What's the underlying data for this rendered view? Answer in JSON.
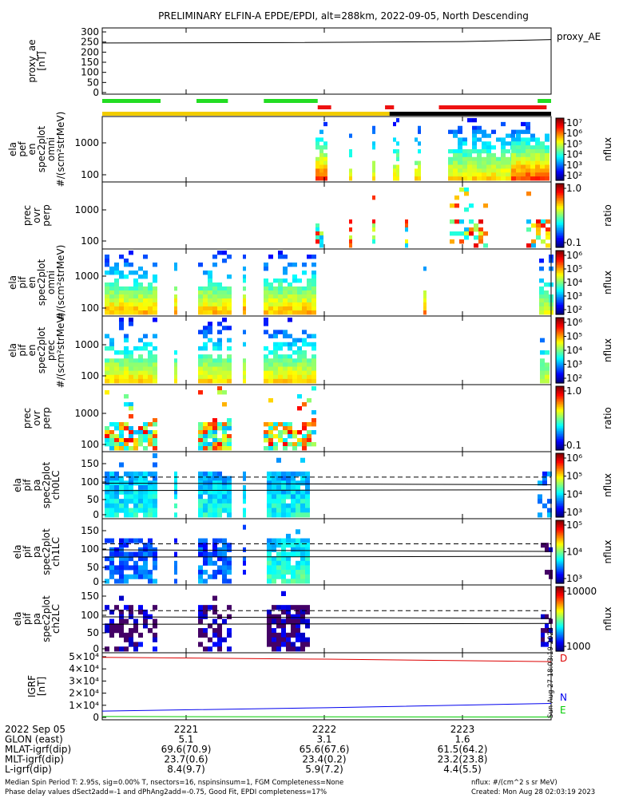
{
  "title": "PRELIMINARY ELFIN-A EPDE/EPDI, alt=288km, 2022-09-05, North Descending",
  "side_note": "Sun Aug 27 18:03:19 2023",
  "time_axis": {
    "ticks": [
      "2221",
      "2222",
      "2223"
    ]
  },
  "chart_data": [
    {
      "type": "line",
      "id": "proxy_ae",
      "ylabel": [
        "proxy_ae",
        "[nT]"
      ],
      "legend": "proxy_AE",
      "ylim": [
        0,
        300
      ],
      "yticks": [
        "300",
        "250",
        "200",
        "150",
        "100",
        "50",
        "0"
      ],
      "series": [
        {
          "name": "proxy_AE",
          "x": [
            0.0,
            0.4,
            0.8,
            1.0
          ],
          "values": [
            245,
            247,
            252,
            262
          ]
        }
      ]
    },
    {
      "type": "bar",
      "id": "status_bars",
      "series": [
        {
          "name": "green",
          "color": "#22dd22",
          "segments": [
            [
              0.0,
              0.13
            ],
            [
              0.21,
              0.28
            ],
            [
              0.36,
              0.48
            ],
            [
              0.97,
              1.0
            ]
          ]
        },
        {
          "name": "red",
          "color": "#ee1111",
          "segments": [
            [
              0.48,
              0.51
            ],
            [
              0.63,
              0.65
            ],
            [
              0.75,
              0.99
            ]
          ]
        },
        {
          "name": "yellow",
          "color": "#f2cc00",
          "segments": [
            [
              0.0,
              0.64
            ]
          ]
        },
        {
          "name": "black",
          "color": "#000000",
          "segments": [
            [
              0.64,
              1.0
            ]
          ]
        }
      ]
    },
    {
      "type": "heatmap",
      "id": "ela-pef-en-omni",
      "ylabel": [
        "ela",
        "pef",
        "en",
        "spec2plot",
        "omni",
        "#/(scm²strMeV)"
      ],
      "yticks": [
        "1000",
        "100"
      ],
      "colorbar": {
        "label": "nflux",
        "ticks": [
          "10⁷",
          "10⁶",
          "10⁵",
          "10⁴",
          "10³",
          "10²"
        ]
      }
    },
    {
      "type": "heatmap",
      "id": "ela-pef-prec-ovr-perp",
      "ylabel": [
        "prec",
        "ovr",
        "perp"
      ],
      "yticks": [
        "1000",
        "100"
      ],
      "colorbar": {
        "label": "ratio",
        "ticks": [
          "1.0",
          "0.1"
        ]
      }
    },
    {
      "type": "heatmap",
      "id": "ela-pif-en-omni",
      "ylabel": [
        "ela",
        "pif",
        "en",
        "spec2plot",
        "omni",
        "#/(scm²strMeV)"
      ],
      "yticks": [
        "1000",
        "100"
      ],
      "colorbar": {
        "label": "nflux",
        "ticks": [
          "10⁶",
          "10⁵",
          "10⁴",
          "10³",
          "10²"
        ]
      }
    },
    {
      "type": "heatmap",
      "id": "ela-pif-en-prec",
      "ylabel": [
        "ela",
        "pif",
        "en",
        "spec2plot",
        "prec",
        "#/(scm²strMeV)"
      ],
      "yticks": [
        "1000",
        "100"
      ],
      "colorbar": {
        "label": "nflux",
        "ticks": [
          "10⁶",
          "10⁵",
          "10⁴",
          "10³",
          "10²"
        ]
      }
    },
    {
      "type": "heatmap",
      "id": "ela-pif-prec-ovr-perp",
      "ylabel": [
        "prec",
        "ovr",
        "perp"
      ],
      "yticks": [
        "1000",
        "100"
      ],
      "colorbar": {
        "label": "ratio",
        "ticks": [
          "1.0",
          "0.1"
        ]
      }
    },
    {
      "type": "heatmap",
      "id": "ela-pif-pa-ch0LC",
      "ylabel": [
        "ela",
        "pif",
        "pa",
        "spec2plot",
        "ch0LC"
      ],
      "yticks": [
        "150",
        "100",
        "50",
        "0"
      ],
      "colorbar": {
        "label": "nflux",
        "ticks": [
          "10⁶",
          "10⁵",
          "10⁴",
          "10³"
        ]
      }
    },
    {
      "type": "heatmap",
      "id": "ela-pif-pa-ch1LC",
      "ylabel": [
        "ela",
        "pif",
        "pa",
        "spec2plot",
        "ch1LC"
      ],
      "yticks": [
        "150",
        "100",
        "50",
        "0"
      ],
      "colorbar": {
        "label": "nflux",
        "ticks": [
          "10⁵",
          "10⁴",
          "10³"
        ]
      }
    },
    {
      "type": "heatmap",
      "id": "ela-pif-pa-ch2LC",
      "ylabel": [
        "ela",
        "pif",
        "pa",
        "spec2plot",
        "ch2LC"
      ],
      "yticks": [
        "150",
        "100",
        "50",
        "0"
      ],
      "colorbar": {
        "label": "nflux",
        "ticks": [
          "10000",
          "1000"
        ]
      }
    },
    {
      "type": "line",
      "id": "igrf",
      "ylabel": [
        "IGRF",
        "[nT]"
      ],
      "yticks": [
        "5×10⁴",
        "4×10⁴",
        "3×10⁴",
        "2×10⁴",
        "1×10⁴",
        "0"
      ],
      "ylim": [
        0,
        50000
      ],
      "series": [
        {
          "name": "D",
          "color": "#dd0000",
          "x": [
            0,
            0.5,
            1
          ],
          "values": [
            49500,
            48000,
            46000
          ]
        },
        {
          "name": "N",
          "color": "#0000ee",
          "x": [
            0,
            0.5,
            1
          ],
          "values": [
            5200,
            8000,
            11500
          ]
        },
        {
          "name": "E",
          "color": "#00cc00",
          "x": [
            0,
            0.5,
            1
          ],
          "values": [
            700,
            500,
            300
          ]
        }
      ]
    }
  ],
  "footer": {
    "rows": [
      {
        "label": "2022 Sep 05",
        "values": [
          "2221",
          "2222",
          "2223"
        ]
      },
      {
        "label": "GLON (east)",
        "values": [
          "5.1",
          "3.1",
          "1.6"
        ]
      },
      {
        "label": "MLAT-igrf(dip)",
        "values": [
          "69.6(70.9)",
          "65.6(67.6)",
          "61.5(64.2)"
        ]
      },
      {
        "label": "MLT-igrf(dip)",
        "values": [
          "23.7(0.6)",
          "23.4(0.2)",
          "23.2(23.8)"
        ]
      },
      {
        "label": "L-igrf(dip)",
        "values": [
          "8.4(9.7)",
          "5.9(7.2)",
          "4.4(5.5)"
        ]
      }
    ],
    "note1": "Median Spin Period T: 2.95s, sig=0.00% T, nsectors=16, nspinsinsum=1, FGM Completeness=None",
    "note2": "Phase delay values dSect2add=-1 and dPhAng2add=-0.75, Good Fit, EPDI completeness=17%",
    "units": "nflux: #/(cm^2 s sr MeV)",
    "created": "Created: Mon Aug 28 02:03:19 2023"
  }
}
